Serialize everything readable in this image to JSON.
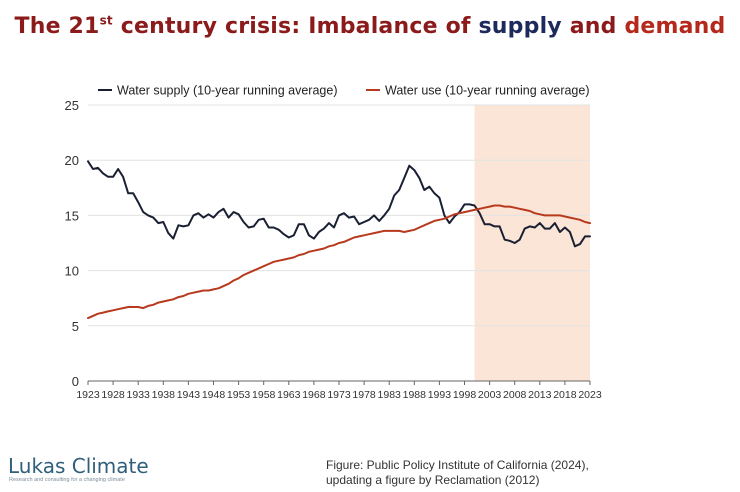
{
  "page": {
    "title_pre": "The 21",
    "title_sup": "st",
    "title_mid": " century crisis: Imbalance of ",
    "title_supply": "supply",
    "title_and": " and ",
    "title_demand": "demand",
    "title_color": "#8b1a1a",
    "supply_word_color": "#1f2a5c",
    "demand_word_color": "#b5281c"
  },
  "brand": {
    "name": "Lukas Climate",
    "tagline": "Research and consulting for a changing climate"
  },
  "source": {
    "line1": "Figure: Public Policy Institute of California (2024),",
    "line2": "updating a figure by Reclamation (2012)"
  },
  "chart_data": {
    "type": "line",
    "title": "",
    "xlabel": "",
    "ylabel": "",
    "xlim": [
      1923,
      2023
    ],
    "ylim": [
      0,
      25
    ],
    "xticks": [
      1923,
      1928,
      1933,
      1938,
      1943,
      1948,
      1953,
      1958,
      1963,
      1968,
      1973,
      1978,
      1983,
      1988,
      1993,
      1998,
      2003,
      2008,
      2013,
      2018,
      2023
    ],
    "yticks": [
      0,
      5,
      10,
      15,
      20,
      25
    ],
    "grid": "horizontal",
    "legend_position": "top",
    "shaded_region": {
      "x": [
        2000,
        2023
      ],
      "color": "#fbe5d6"
    },
    "x": [
      1923,
      1924,
      1925,
      1926,
      1927,
      1928,
      1929,
      1930,
      1931,
      1932,
      1933,
      1934,
      1935,
      1936,
      1937,
      1938,
      1939,
      1940,
      1941,
      1942,
      1943,
      1944,
      1945,
      1946,
      1947,
      1948,
      1949,
      1950,
      1951,
      1952,
      1953,
      1954,
      1955,
      1956,
      1957,
      1958,
      1959,
      1960,
      1961,
      1962,
      1963,
      1964,
      1965,
      1966,
      1967,
      1968,
      1969,
      1970,
      1971,
      1972,
      1973,
      1974,
      1975,
      1976,
      1977,
      1978,
      1979,
      1980,
      1981,
      1982,
      1983,
      1984,
      1985,
      1986,
      1987,
      1988,
      1989,
      1990,
      1991,
      1992,
      1993,
      1994,
      1995,
      1996,
      1997,
      1998,
      1999,
      2000,
      2001,
      2002,
      2003,
      2004,
      2005,
      2006,
      2007,
      2008,
      2009,
      2010,
      2011,
      2012,
      2013,
      2014,
      2015,
      2016,
      2017,
      2018,
      2019,
      2020,
      2021,
      2022,
      2023
    ],
    "series": [
      {
        "name": "Water supply (10-year running average)",
        "color": "#1a2033",
        "values": [
          19.9,
          19.2,
          19.3,
          18.8,
          18.5,
          18.5,
          19.2,
          18.5,
          17.0,
          17.0,
          16.2,
          15.3,
          15.0,
          14.8,
          14.3,
          14.4,
          13.4,
          12.9,
          14.1,
          14.0,
          14.1,
          15.0,
          15.2,
          14.8,
          15.1,
          14.8,
          15.3,
          15.6,
          14.8,
          15.3,
          15.1,
          14.4,
          13.9,
          14.0,
          14.6,
          14.7,
          13.9,
          13.9,
          13.7,
          13.3,
          13.0,
          13.2,
          14.2,
          14.2,
          13.2,
          12.9,
          13.5,
          13.8,
          14.3,
          13.9,
          15.0,
          15.2,
          14.8,
          14.9,
          14.2,
          14.4,
          14.6,
          15.0,
          14.5,
          15.0,
          15.6,
          16.8,
          17.3,
          18.4,
          19.5,
          19.1,
          18.4,
          17.3,
          17.6,
          17.0,
          16.6,
          15.0,
          14.3,
          14.9,
          15.3,
          16.0,
          16.0,
          15.9,
          15.2,
          14.2,
          14.2,
          14.0,
          14.0,
          12.8,
          12.7,
          12.5,
          12.8,
          13.8,
          14.0,
          13.9,
          14.3,
          13.8,
          13.8,
          14.3,
          13.5,
          13.9,
          13.5,
          12.2,
          12.4,
          13.1,
          13.1
        ]
      },
      {
        "name": "Water use (10-year running average)",
        "color": "#b83a1e",
        "values": [
          5.7,
          5.9,
          6.1,
          6.2,
          6.3,
          6.4,
          6.5,
          6.6,
          6.7,
          6.7,
          6.7,
          6.6,
          6.8,
          6.9,
          7.1,
          7.2,
          7.3,
          7.4,
          7.6,
          7.7,
          7.9,
          8.0,
          8.1,
          8.2,
          8.2,
          8.3,
          8.4,
          8.6,
          8.8,
          9.1,
          9.3,
          9.6,
          9.8,
          10.0,
          10.2,
          10.4,
          10.6,
          10.8,
          10.9,
          11.0,
          11.1,
          11.2,
          11.4,
          11.5,
          11.7,
          11.8,
          11.9,
          12.0,
          12.2,
          12.3,
          12.5,
          12.6,
          12.8,
          13.0,
          13.1,
          13.2,
          13.3,
          13.4,
          13.5,
          13.6,
          13.6,
          13.6,
          13.6,
          13.5,
          13.6,
          13.7,
          13.9,
          14.1,
          14.3,
          14.5,
          14.6,
          14.7,
          14.9,
          15.1,
          15.2,
          15.3,
          15.4,
          15.5,
          15.6,
          15.7,
          15.8,
          15.9,
          15.9,
          15.8,
          15.8,
          15.7,
          15.6,
          15.5,
          15.4,
          15.2,
          15.1,
          15.0,
          15.0,
          15.0,
          15.0,
          14.9,
          14.8,
          14.7,
          14.6,
          14.4,
          14.3
        ]
      }
    ]
  }
}
